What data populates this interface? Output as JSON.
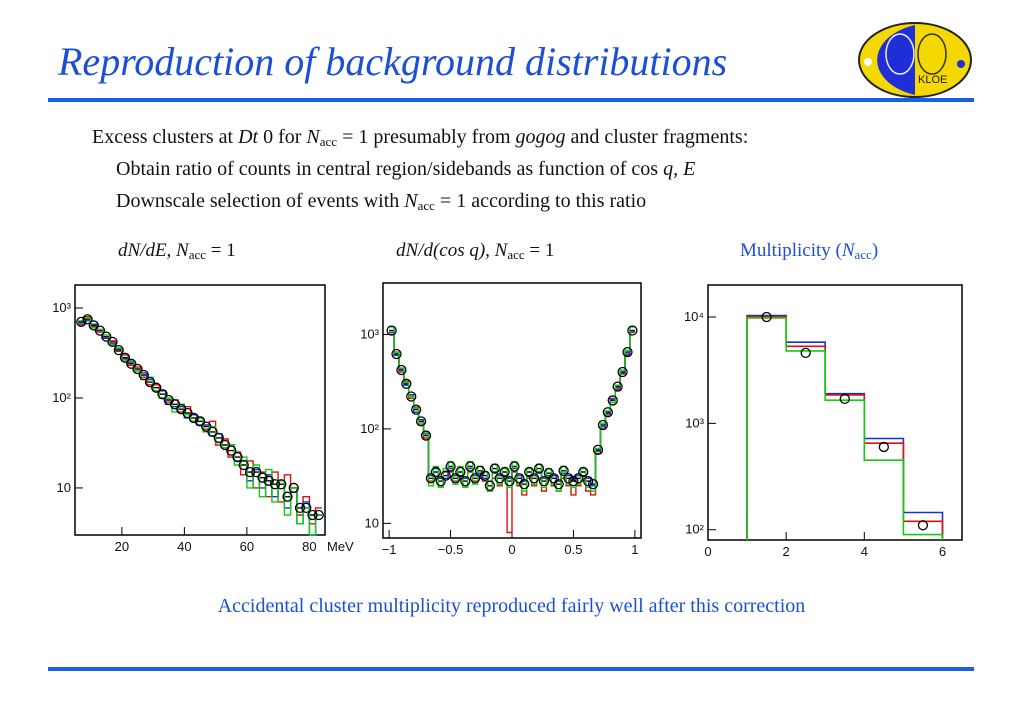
{
  "slide": {
    "title": "Reproduction of background distributions",
    "bullet1_a": "Excess clusters at ",
    "bullet1_sym1": "Dt",
    "bullet1_sym2": " 0 for ",
    "bullet1_n": "N",
    "bullet1_sub": "acc",
    "bullet1_b": " = 1 presumably from ",
    "bullet1_sym3": "gogog",
    "bullet1_c": " and cluster fragments:",
    "bullet2": "Obtain ratio of counts in central region/sidebands as function of cos ",
    "bullet2_sym": "q",
    "bullet2_e": ", E",
    "bullet3_a": "Downscale selection of events with ",
    "bullet3_n": "N",
    "bullet3_sub": "acc",
    "bullet3_b": " = 1 according to this ratio",
    "label1_a": "dN/dE, N",
    "label1_sub": "acc",
    "label1_b": " = 1",
    "label2_a": "dN/d(cos q), N",
    "label2_sub": "acc",
    "label2_b": " = 1",
    "label3_a": "Multiplicity (",
    "label3_n": "N",
    "label3_sub": "acc",
    "label3_b": ")",
    "footer": "Accidental cluster multiplicity reproduced fairly well after this correction",
    "logo_text": "KLOE",
    "accent": "#1a4fd6"
  },
  "chart_data": [
    {
      "type": "line",
      "xlim": [
        5,
        85
      ],
      "ylim": [
        3,
        1800
      ],
      "log_y": true,
      "x_ticks": [
        20,
        40,
        60,
        80
      ],
      "y_ticks": [
        {
          "v": 10,
          "t": "10"
        },
        {
          "v": 100,
          "t": "10²"
        },
        {
          "v": 1000,
          "t": "10³"
        }
      ],
      "xunit": "MeV",
      "x": [
        7,
        9,
        11,
        13,
        15,
        17,
        19,
        21,
        23,
        25,
        27,
        29,
        31,
        33,
        35,
        37,
        39,
        41,
        43,
        45,
        47,
        49,
        51,
        53,
        55,
        57,
        59,
        61,
        63,
        65,
        67,
        69,
        71,
        73,
        75,
        77,
        79,
        81,
        83
      ],
      "series": [
        {
          "color": "#000000",
          "markers": true,
          "values": [
            700,
            750,
            640,
            560,
            480,
            420,
            340,
            280,
            240,
            210,
            180,
            150,
            130,
            110,
            95,
            85,
            75,
            68,
            60,
            55,
            48,
            42,
            36,
            30,
            26,
            22,
            18,
            15,
            15,
            13,
            12,
            11,
            11,
            8,
            10,
            6,
            6,
            5,
            5
          ]
        },
        {
          "color": "#dd1111",
          "values": [
            650,
            800,
            620,
            540,
            470,
            430,
            330,
            300,
            230,
            220,
            170,
            140,
            140,
            100,
            90,
            95,
            70,
            80,
            55,
            60,
            45,
            55,
            30,
            35,
            22,
            25,
            14,
            20,
            10,
            15,
            8,
            15,
            7,
            14,
            10,
            5,
            8,
            4,
            6
          ]
        },
        {
          "color": "#1133dd",
          "values": [
            680,
            720,
            660,
            570,
            460,
            400,
            350,
            270,
            250,
            200,
            190,
            160,
            120,
            120,
            85,
            80,
            80,
            60,
            65,
            50,
            50,
            38,
            40,
            28,
            30,
            20,
            20,
            12,
            16,
            10,
            14,
            8,
            12,
            6,
            9,
            4,
            7,
            3,
            5
          ]
        },
        {
          "color": "#11cc11",
          "values": [
            720,
            770,
            600,
            580,
            500,
            390,
            360,
            260,
            260,
            200,
            160,
            170,
            120,
            100,
            100,
            70,
            85,
            65,
            55,
            60,
            42,
            48,
            32,
            28,
            30,
            18,
            22,
            10,
            18,
            8,
            16,
            7,
            12,
            5,
            10,
            4,
            6,
            3,
            5
          ]
        }
      ]
    },
    {
      "type": "line",
      "xlim": [
        -1.05,
        1.05
      ],
      "ylim": [
        7,
        3500
      ],
      "log_y": true,
      "x_ticks": [
        -1,
        -0.5,
        0,
        0.5,
        1
      ],
      "x_tick_labels": [
        "−1",
        "−0.5",
        "0",
        "0.5",
        "1"
      ],
      "y_ticks": [
        {
          "v": 10,
          "t": "10"
        },
        {
          "v": 100,
          "t": "10²"
        },
        {
          "v": 1000,
          "t": "10³"
        }
      ],
      "x": [
        -0.98,
        -0.94,
        -0.9,
        -0.86,
        -0.82,
        -0.78,
        -0.74,
        -0.7,
        -0.66,
        -0.62,
        -0.58,
        -0.54,
        -0.5,
        -0.46,
        -0.42,
        -0.38,
        -0.34,
        -0.3,
        -0.26,
        -0.22,
        -0.18,
        -0.14,
        -0.1,
        -0.06,
        -0.02,
        0.02,
        0.06,
        0.1,
        0.14,
        0.18,
        0.22,
        0.26,
        0.3,
        0.34,
        0.38,
        0.42,
        0.46,
        0.5,
        0.54,
        0.58,
        0.62,
        0.66,
        0.7,
        0.74,
        0.78,
        0.82,
        0.86,
        0.9,
        0.94,
        0.98
      ],
      "series": [
        {
          "color": "#000000",
          "markers": true,
          "values": [
            1100,
            620,
            420,
            300,
            220,
            160,
            120,
            85,
            30,
            35,
            28,
            32,
            40,
            30,
            35,
            28,
            40,
            30,
            36,
            32,
            25,
            38,
            30,
            35,
            28,
            40,
            30,
            26,
            35,
            30,
            38,
            28,
            34,
            30,
            26,
            36,
            30,
            28,
            30,
            35,
            28,
            26,
            60,
            110,
            150,
            200,
            280,
            400,
            650,
            1100
          ]
        },
        {
          "color": "#dd1111",
          "values": [
            1000,
            650,
            400,
            320,
            210,
            170,
            110,
            80,
            28,
            30,
            25,
            35,
            35,
            28,
            30,
            25,
            35,
            28,
            30,
            28,
            22,
            30,
            25,
            30,
            8,
            35,
            25,
            20,
            30,
            25,
            30,
            22,
            30,
            25,
            22,
            30,
            25,
            20,
            25,
            28,
            22,
            20,
            55,
            100,
            140,
            210,
            260,
            380,
            600,
            1050
          ]
        },
        {
          "color": "#1133dd",
          "values": [
            1050,
            600,
            430,
            290,
            230,
            150,
            125,
            90,
            32,
            38,
            30,
            30,
            38,
            32,
            32,
            30,
            38,
            32,
            34,
            30,
            28,
            35,
            32,
            32,
            30,
            38,
            32,
            28,
            32,
            32,
            35,
            30,
            32,
            32,
            28,
            34,
            32,
            30,
            32,
            32,
            30,
            25,
            58,
            105,
            145,
            205,
            270,
            390,
            620,
            1080
          ]
        },
        {
          "color": "#11cc11",
          "values": [
            1200,
            640,
            440,
            310,
            220,
            165,
            115,
            88,
            25,
            40,
            24,
            38,
            45,
            26,
            40,
            24,
            45,
            26,
            40,
            35,
            22,
            42,
            26,
            38,
            24,
            45,
            26,
            22,
            38,
            26,
            42,
            24,
            38,
            26,
            22,
            40,
            26,
            24,
            26,
            38,
            24,
            22,
            62,
            115,
            155,
            190,
            290,
            420,
            680,
            1200
          ]
        }
      ]
    },
    {
      "type": "bar",
      "xlim": [
        0,
        6.5
      ],
      "ylim": [
        80,
        20000
      ],
      "log_y": true,
      "x_ticks": [
        0,
        2,
        4,
        6
      ],
      "y_ticks": [
        {
          "v": 100,
          "t": "10²"
        },
        {
          "v": 1000,
          "t": "10³"
        },
        {
          "v": 10000,
          "t": "10⁴"
        }
      ],
      "bins": [
        [
          1,
          2
        ],
        [
          2,
          3
        ],
        [
          3,
          4
        ],
        [
          4,
          5
        ],
        [
          5,
          6
        ]
      ],
      "series": [
        {
          "color": "#1133dd",
          "values": [
            10300,
            5800,
            1900,
            720,
            145
          ]
        },
        {
          "color": "#dd1111",
          "values": [
            10100,
            5300,
            1850,
            650,
            120
          ]
        },
        {
          "color": "#11cc11",
          "values": [
            9800,
            4800,
            1650,
            450,
            90
          ]
        }
      ],
      "data_points": {
        "x": [
          1.5,
          2.5,
          3.5,
          4.5,
          5.5
        ],
        "values": [
          10000,
          4600,
          1700,
          600,
          110
        ]
      }
    }
  ]
}
